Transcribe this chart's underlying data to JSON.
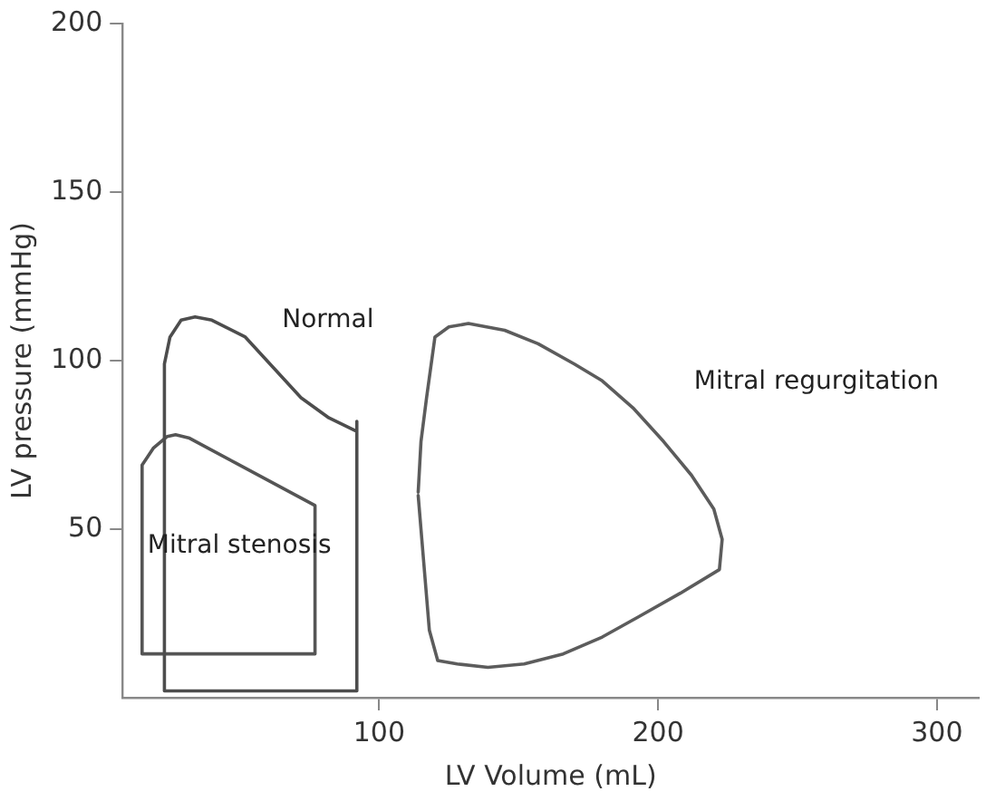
{
  "chart_data": {
    "type": "line",
    "xlabel": "LV Volume (mL)",
    "ylabel": "LV pressure (mmHg)",
    "xlim": [
      8,
      315
    ],
    "ylim": [
      0,
      200
    ],
    "xticks": [
      100,
      200,
      300
    ],
    "yticks": [
      50,
      100,
      150,
      200
    ],
    "grid": false,
    "legend": false,
    "marker": "none",
    "line_style": "solid",
    "series": [
      {
        "name": "Normal",
        "color": "#4d4d4d",
        "x": [
          23,
          23,
          25,
          29,
          34,
          40,
          52,
          62,
          72,
          82,
          92,
          92,
          92,
          23,
          23
        ],
        "values": [
          50,
          99,
          107,
          112,
          113,
          112,
          107,
          98,
          89,
          83,
          79,
          82,
          2,
          2,
          51
        ]
      },
      {
        "name": "Mitral stenosis",
        "color": "#555555",
        "x": [
          15,
          15,
          19,
          24,
          27,
          32,
          77,
          77,
          15,
          15
        ],
        "values": [
          40,
          69,
          74,
          77.5,
          78,
          77,
          57,
          13,
          13,
          41
        ]
      },
      {
        "name": "Mitral regurgitation",
        "color": "#5c5c5c",
        "x": [
          114,
          115,
          117,
          120,
          125,
          132,
          145,
          157,
          170,
          180,
          191,
          202,
          212,
          220,
          223,
          222,
          208,
          193,
          180,
          166,
          152,
          139,
          128,
          121,
          118,
          116,
          114
        ],
        "values": [
          61,
          76,
          89,
          107,
          110,
          111,
          109,
          105,
          99,
          94,
          86,
          76,
          66,
          56,
          47,
          38,
          31,
          24,
          18,
          13,
          10,
          9,
          10,
          11,
          20,
          40,
          60
        ]
      }
    ]
  }
}
